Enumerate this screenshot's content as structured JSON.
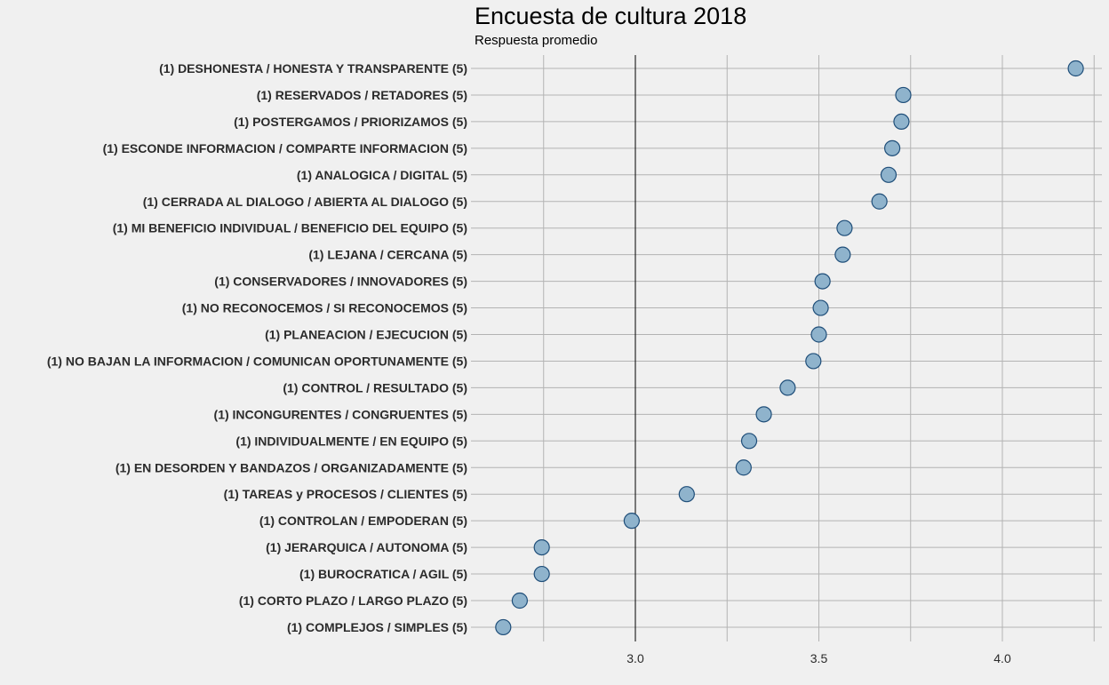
{
  "chart_data": {
    "type": "scatter",
    "title": "Encuesta de cultura 2018",
    "subtitle": "Respuesta promedio",
    "xlabel": "",
    "ylabel": "",
    "xlim": [
      2.55,
      4.25
    ],
    "xticks": [
      "3.0",
      "3.5",
      "4.0"
    ],
    "reference_line": 3.0,
    "grid": true,
    "legend": "none",
    "colors": {
      "point_fill": "#8fb3cc",
      "point_stroke": "#1f4e79",
      "grid": "#b3b3b3",
      "background": "#f0f0f0"
    },
    "categories": [
      "(1) DESHONESTA / HONESTA Y TRANSPARENTE (5)",
      "(1) RESERVADOS / RETADORES (5)",
      "(1) POSTERGAMOS / PRIORIZAMOS (5)",
      "(1) ESCONDE INFORMACION / COMPARTE INFORMACION (5)",
      "(1) ANALOGICA / DIGITAL (5)",
      "(1) CERRADA AL DIALOGO /  ABIERTA AL DIALOGO (5)",
      "(1) MI BENEFICIO INDIVIDUAL / BENEFICIO DEL EQUIPO (5)",
      "(1) LEJANA / CERCANA (5)",
      "(1) CONSERVADORES / INNOVADORES (5)",
      "(1) NO RECONOCEMOS / SI RECONOCEMOS (5)",
      "(1) PLANEACION / EJECUCION (5)",
      "(1) NO BAJAN LA INFORMACION / COMUNICAN OPORTUNAMENTE (5)",
      "(1) CONTROL / RESULTADO (5)",
      "(1) INCONGURENTES / CONGRUENTES (5)",
      "(1) INDIVIDUALMENTE / EN EQUIPO (5)",
      "(1) EN DESORDEN Y BANDAZOS / ORGANIZADAMENTE (5)",
      "(1) TAREAS y PROCESOS / CLIENTES (5)",
      "(1) CONTROLAN / EMPODERAN (5)",
      "(1) JERARQUICA / AUTONOMA (5)",
      "(1) BUROCRATICA / AGIL (5)",
      "(1) CORTO PLAZO / LARGO PLAZO (5)",
      "(1) COMPLEJOS / SIMPLES (5)"
    ],
    "values": [
      4.2,
      3.73,
      3.725,
      3.7,
      3.69,
      3.665,
      3.57,
      3.565,
      3.51,
      3.505,
      3.5,
      3.485,
      3.415,
      3.35,
      3.31,
      3.295,
      3.14,
      2.99,
      2.745,
      2.745,
      2.685,
      2.64
    ]
  }
}
